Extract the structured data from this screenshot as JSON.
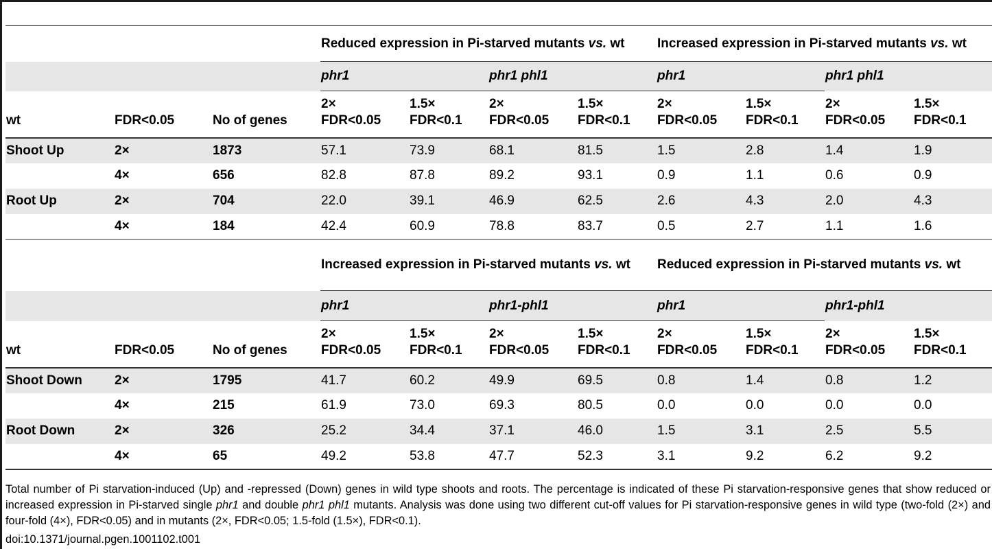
{
  "columns": {
    "wt": "wt",
    "fdr": "FDR<0.05",
    "num": "No of genes",
    "sub_2x_a": "2×",
    "sub_2x_b": "FDR<0.05",
    "sub_15x_a": "1.5×",
    "sub_15x_b": "FDR<0.1"
  },
  "upper": {
    "group_left": "Reduced expression in Pi-starved mutants",
    "group_left_vs": "vs.",
    "group_left_tail": "wt",
    "group_right": "Increased expression in Pi-starved mutants",
    "group_right_vs": "vs.",
    "group_right_tail": "wt",
    "m1": "phr1",
    "m2": "phr1 phl1",
    "m3": "phr1",
    "m4": "phr1 phl1",
    "rows": [
      {
        "wt": "Shoot Up",
        "fdr": "2×",
        "num": "1873",
        "v": [
          "57.1",
          "73.9",
          "68.1",
          "81.5",
          "1.5",
          "2.8",
          "1.4",
          "1.9"
        ]
      },
      {
        "wt": "",
        "fdr": "4×",
        "num": "656",
        "v": [
          "82.8",
          "87.8",
          "89.2",
          "93.1",
          "0.9",
          "1.1",
          "0.6",
          "0.9"
        ]
      },
      {
        "wt": "Root Up",
        "fdr": "2×",
        "num": "704",
        "v": [
          "22.0",
          "39.1",
          "46.9",
          "62.5",
          "2.6",
          "4.3",
          "2.0",
          "4.3"
        ]
      },
      {
        "wt": "",
        "fdr": "4×",
        "num": "184",
        "v": [
          "42.4",
          "60.9",
          "78.8",
          "83.7",
          "0.5",
          "2.7",
          "1.1",
          "1.6"
        ]
      }
    ]
  },
  "lower": {
    "group_left": "Increased expression in Pi-starved mutants",
    "group_left_vs": "vs.",
    "group_left_tail": "wt",
    "group_right": "Reduced expression in Pi-starved mutants",
    "group_right_vs": "vs.",
    "group_right_tail": "wt",
    "m1": "phr1",
    "m2": "phr1-phl1",
    "m3": "phr1",
    "m4": "phr1-phl1",
    "rows": [
      {
        "wt": "Shoot Down",
        "fdr": "2×",
        "num": "1795",
        "v": [
          "41.7",
          "60.2",
          "49.9",
          "69.5",
          "0.8",
          "1.4",
          "0.8",
          "1.2"
        ]
      },
      {
        "wt": "",
        "fdr": "4×",
        "num": "215",
        "v": [
          "61.9",
          "73.0",
          "69.3",
          "80.5",
          "0.0",
          "0.0",
          "0.0",
          "0.0"
        ]
      },
      {
        "wt": "Root Down",
        "fdr": "2×",
        "num": "326",
        "v": [
          "25.2",
          "34.4",
          "37.1",
          "46.0",
          "1.5",
          "3.1",
          "2.5",
          "5.5"
        ]
      },
      {
        "wt": "",
        "fdr": "4×",
        "num": "65",
        "v": [
          "49.2",
          "53.8",
          "47.7",
          "52.3",
          "3.1",
          "9.2",
          "6.2",
          "9.2"
        ]
      }
    ]
  },
  "caption": {
    "p1": "Total number of Pi starvation-induced (Up) and -repressed (Down) genes in wild type shoots and roots. The percentage is indicated of these Pi starvation-responsive genes that show reduced or increased expression in Pi-starved single ",
    "i1": "phr1",
    "p2": " and double ",
    "i2": "phr1 phl1",
    "p3": " mutants. Analysis was done using two different cut-off values for Pi starvation-responsive genes in wild type (two-fold (2×) and four-fold (4×), FDR<0.05) and in mutants (2×, FDR<0.05; 1.5-fold (1.5×), FDR<0.1).",
    "doi": "doi:10.1371/journal.pgen.1001102.t001"
  }
}
